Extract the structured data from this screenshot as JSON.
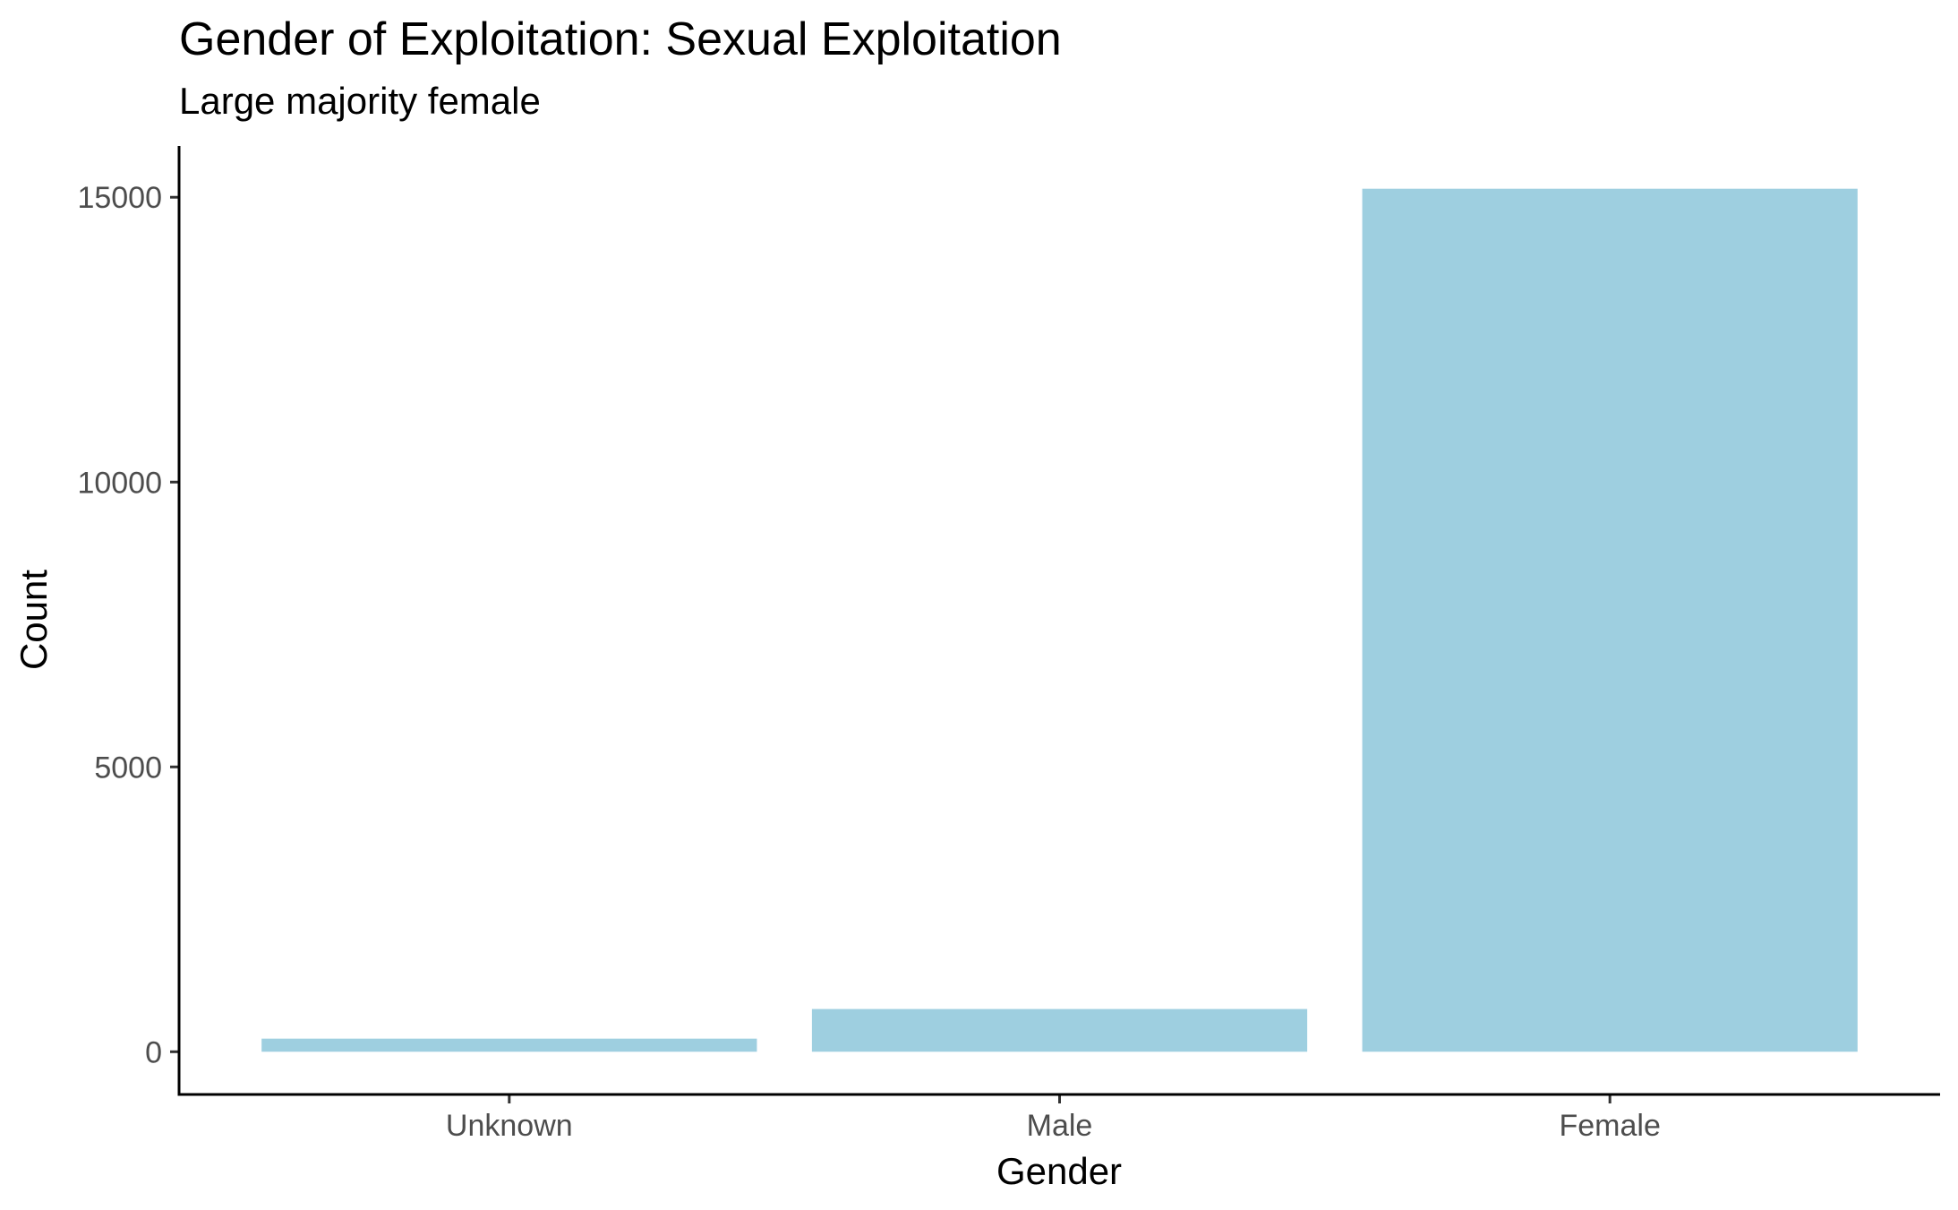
{
  "chart_data": {
    "type": "bar",
    "title": "Gender of Exploitation:  Sexual Exploitation",
    "subtitle": "Large majority female",
    "xlabel": "Gender",
    "ylabel": "Count",
    "categories": [
      "Unknown",
      "Male",
      "Female"
    ],
    "values": [
      230,
      750,
      15150
    ],
    "ylim": [
      -750,
      15900
    ],
    "yticks": [
      0,
      5000,
      10000,
      15000
    ],
    "ytick_labels": [
      "0",
      "5000",
      "10000",
      "15000"
    ],
    "grid": false,
    "legend": "none",
    "bar_color": "#9ecfe0"
  }
}
